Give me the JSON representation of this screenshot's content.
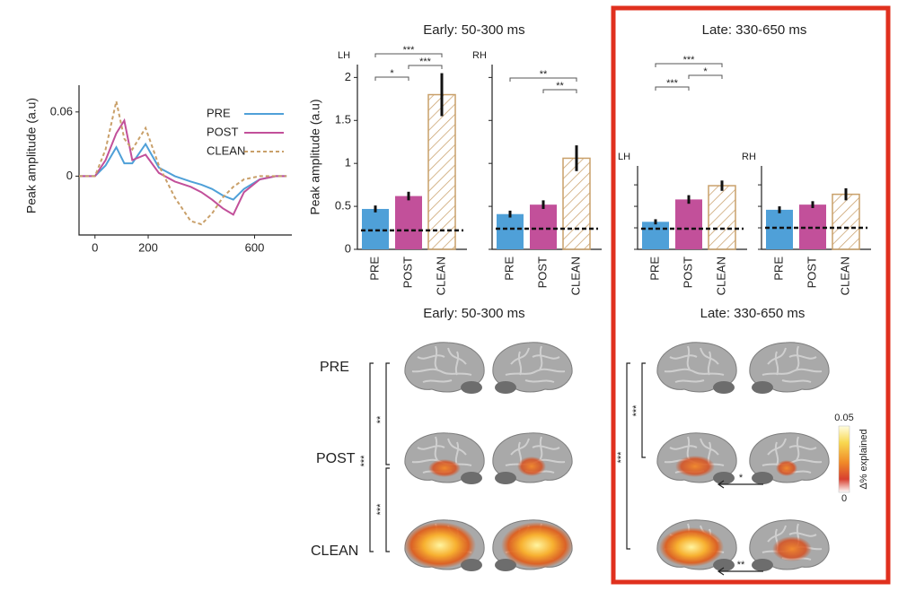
{
  "chart_data": [
    {
      "type": "line",
      "ylabel": "Peak amplitude (a.u)",
      "x": [
        -60,
        0,
        40,
        80,
        110,
        140,
        190,
        240,
        300,
        360,
        400,
        440,
        480,
        520,
        560,
        620,
        680,
        720
      ],
      "xlim": [
        -60,
        740
      ],
      "xticks": [
        0,
        200,
        600
      ],
      "ylim": [
        -0.055,
        0.085
      ],
      "yticks": [
        0,
        0.06
      ],
      "series": [
        {
          "name": "PRE",
          "color": "#4fa0d8",
          "dash": false,
          "values": [
            0,
            0,
            0.01,
            0.027,
            0.012,
            0.012,
            0.03,
            0.008,
            0,
            -0.005,
            -0.008,
            -0.012,
            -0.018,
            -0.022,
            -0.012,
            -0.003,
            0,
            0
          ]
        },
        {
          "name": "POST",
          "color": "#c2509a",
          "dash": false,
          "values": [
            0,
            0,
            0.015,
            0.04,
            0.052,
            0.015,
            0.02,
            0.003,
            -0.005,
            -0.01,
            -0.015,
            -0.022,
            -0.03,
            -0.036,
            -0.015,
            -0.003,
            0,
            0
          ]
        },
        {
          "name": "CLEAN",
          "color": "#c9a06a",
          "dash": true,
          "values": [
            0,
            0,
            0.025,
            0.07,
            0.035,
            0.025,
            0.045,
            0.01,
            -0.02,
            -0.042,
            -0.045,
            -0.035,
            -0.02,
            -0.01,
            -0.003,
            0,
            0,
            0
          ]
        }
      ]
    },
    {
      "type": "bar",
      "title": "Early: 50-300 ms",
      "panel_label": "LH",
      "ylabel": "Peak amplitude (a.u)",
      "show_tick_labels": true,
      "ylim": [
        0,
        2.15
      ],
      "yticks": [
        0,
        0.5,
        1,
        1.5,
        2
      ],
      "categories": [
        "PRE",
        "POST",
        "CLEAN"
      ],
      "colors": [
        "#4fa0d8",
        "#c2509a",
        "#c9a06a"
      ],
      "hatch": [
        false,
        false,
        true
      ],
      "values": [
        0.47,
        0.62,
        1.8
      ],
      "errors": [
        0.04,
        0.05,
        0.25
      ],
      "baseline": 0.22,
      "significance": [
        {
          "from": 0,
          "to": 1,
          "label": "*"
        },
        {
          "from": 1,
          "to": 2,
          "label": "***"
        },
        {
          "from": 0,
          "to": 2,
          "label": "***"
        }
      ]
    },
    {
      "type": "bar",
      "panel_label": "RH",
      "show_tick_labels": false,
      "ylim": [
        0,
        2.15
      ],
      "yticks": [
        0,
        0.5,
        1,
        1.5,
        2
      ],
      "categories": [
        "PRE",
        "POST",
        "CLEAN"
      ],
      "colors": [
        "#4fa0d8",
        "#c2509a",
        "#c9a06a"
      ],
      "hatch": [
        false,
        false,
        true
      ],
      "values": [
        0.41,
        0.52,
        1.06
      ],
      "errors": [
        0.04,
        0.05,
        0.15
      ],
      "baseline": 0.24,
      "significance": [
        {
          "from": 1,
          "to": 2,
          "label": "**"
        },
        {
          "from": 0,
          "to": 2,
          "label": "**"
        }
      ]
    },
    {
      "type": "bar",
      "title": "Late: 330-650 ms",
      "panel_label": "LH",
      "show_tick_labels": false,
      "ylim": [
        0,
        0.97
      ],
      "yticks": [
        0,
        0.25,
        0.5,
        0.75
      ],
      "categories": [
        "PRE",
        "POST",
        "CLEAN"
      ],
      "colors": [
        "#4fa0d8",
        "#c2509a",
        "#c9a06a"
      ],
      "hatch": [
        false,
        false,
        true
      ],
      "values": [
        0.32,
        0.58,
        0.74
      ],
      "errors": [
        0.03,
        0.05,
        0.06
      ],
      "baseline": 0.24,
      "significance": [
        {
          "from": 0,
          "to": 1,
          "label": "***"
        },
        {
          "from": 1,
          "to": 2,
          "label": "*"
        },
        {
          "from": 0,
          "to": 2,
          "label": "***"
        }
      ]
    },
    {
      "type": "bar",
      "panel_label": "RH",
      "show_tick_labels": false,
      "ylim": [
        0,
        0.97
      ],
      "yticks": [
        0,
        0.25,
        0.5,
        0.75
      ],
      "categories": [
        "PRE",
        "POST",
        "CLEAN"
      ],
      "colors": [
        "#4fa0d8",
        "#c2509a",
        "#c9a06a"
      ],
      "hatch": [
        false,
        false,
        true
      ],
      "values": [
        0.46,
        0.52,
        0.64
      ],
      "errors": [
        0.04,
        0.04,
        0.07
      ],
      "baseline": 0.25,
      "significance": []
    }
  ],
  "brain_maps": {
    "early_title": "Early: 50-300 ms",
    "late_title": "Late: 330-650 ms",
    "rows": [
      "PRE",
      "POST",
      "CLEAN"
    ],
    "early_brackets": [
      "**",
      "***",
      "***"
    ],
    "late_brackets": [
      "***",
      "***"
    ],
    "arrows": [
      "*",
      "**"
    ],
    "colorbar_max": "0.05",
    "colorbar_min": "0",
    "colorbar_label": "Δ% explained"
  }
}
